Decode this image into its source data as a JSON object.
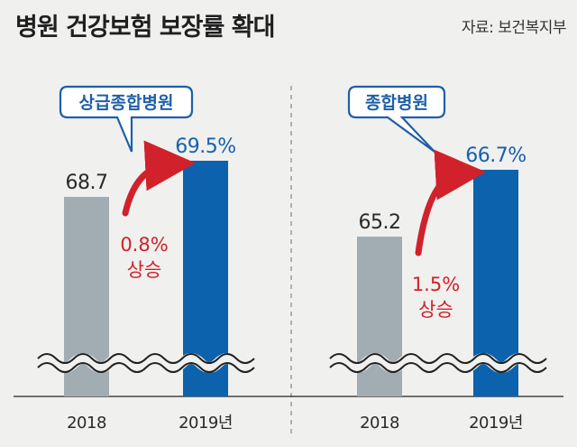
{
  "title": "병원 건강보험 보장률 확대",
  "source": "자료: 보건복지부",
  "colors": {
    "bar_2018": "#a2acb3",
    "bar_2019": "#0d62ad",
    "value_2019": "#1661ad",
    "increase": "#d1212a",
    "callout_border": "#1e5fa8",
    "callout_text": "#1e5fa8"
  },
  "chart_data": [
    {
      "type": "bar",
      "group_label": "상급종합병원",
      "categories": [
        "2018",
        "2019년"
      ],
      "values": [
        68.7,
        69.5
      ],
      "value_labels": [
        "68.7",
        "69.5%"
      ],
      "change_value": "0.8%",
      "change_text": "상승",
      "axis_break": true
    },
    {
      "type": "bar",
      "group_label": "종합병원",
      "categories": [
        "2018",
        "2019년"
      ],
      "values": [
        65.2,
        66.7
      ],
      "value_labels": [
        "65.2",
        "66.7%"
      ],
      "change_value": "1.5%",
      "change_text": "상승",
      "axis_break": true
    }
  ]
}
